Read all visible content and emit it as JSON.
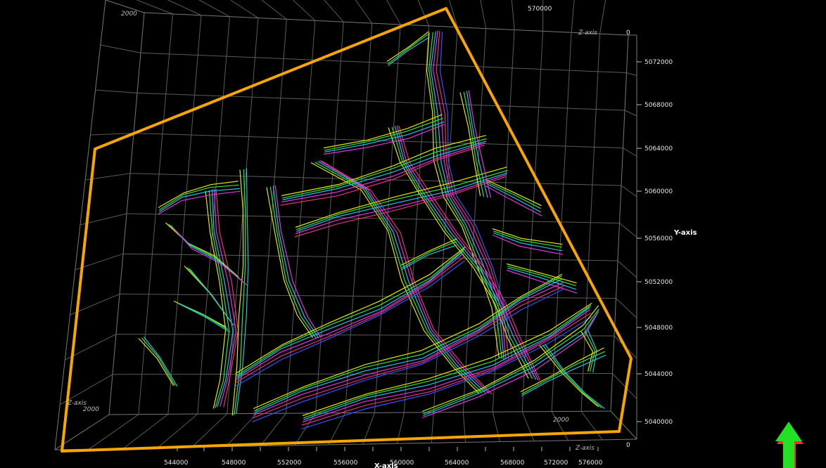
{
  "viewport": {
    "background": "#000000",
    "boundary_color": "#f7a600",
    "grid_color": "#5a5a5a"
  },
  "axes": {
    "x_title": "X-axis",
    "y_title": "Y-axis",
    "z_title": "Z-axis",
    "x_ticks": [
      "544000",
      "548000",
      "552000",
      "556000",
      "560000",
      "564000",
      "568000",
      "572000",
      "576000"
    ],
    "x_top_tick": "570000",
    "y_ticks": [
      "5072000",
      "5068000",
      "5064000",
      "5060000",
      "5056000",
      "5052000",
      "5048000",
      "5044000",
      "5040000"
    ],
    "z_labels": {
      "top_left_value": "2000",
      "top_right_value": "0",
      "bottom_left_value": "2000",
      "bottom_right_value": "2000",
      "bottom_zero": "0"
    }
  },
  "fault_colors": [
    "#e6e600",
    "#33e633",
    "#1ac6e6",
    "#e633e6",
    "#e6337a",
    "#3355ff",
    "#b000ff",
    "#ff3333",
    "#66ffb3",
    "#ffffff"
  ],
  "north_arrow": {
    "color": "#22e022",
    "shadow": "#ff2a2a",
    "icon": "north-arrow-icon"
  }
}
